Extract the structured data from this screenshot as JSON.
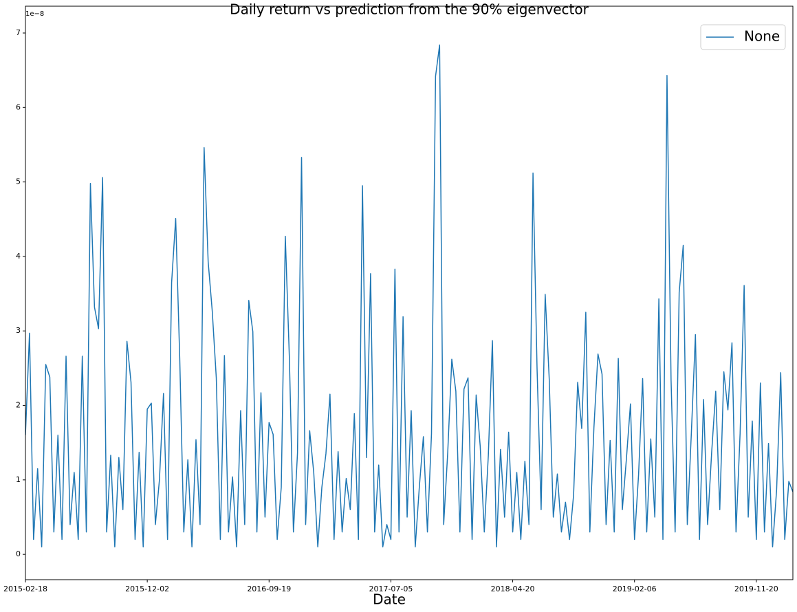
{
  "chart_data": {
    "type": "line",
    "title": "Daily return vs prediction from the 90% eigenvector",
    "x_label": "Date",
    "y_offset_label": "1e−8",
    "categories": [
      "2015-02-18",
      null,
      null,
      null,
      null,
      null,
      null,
      null,
      null,
      null,
      null,
      null,
      null,
      null,
      null,
      null,
      null,
      null,
      null,
      null,
      null,
      null,
      null,
      null,
      null,
      null,
      null,
      null,
      null,
      null,
      "2015-12-02",
      null,
      null,
      null,
      null,
      null,
      null,
      null,
      null,
      null,
      null,
      null,
      null,
      null,
      null,
      null,
      null,
      null,
      null,
      null,
      null,
      null,
      null,
      null,
      null,
      null,
      null,
      null,
      null,
      null,
      "2016-09-19",
      null,
      null,
      null,
      null,
      null,
      null,
      null,
      null,
      null,
      null,
      null,
      null,
      null,
      null,
      null,
      null,
      null,
      null,
      null,
      null,
      null,
      null,
      null,
      null,
      null,
      null,
      null,
      null,
      null,
      "2017-07-05",
      null,
      null,
      null,
      null,
      null,
      null,
      null,
      null,
      null,
      null,
      null,
      null,
      null,
      null,
      null,
      null,
      null,
      null,
      null,
      null,
      null,
      null,
      null,
      null,
      null,
      null,
      null,
      null,
      null,
      "2018-04-20",
      null,
      null,
      null,
      null,
      null,
      null,
      null,
      null,
      null,
      null,
      null,
      null,
      null,
      null,
      null,
      null,
      null,
      null,
      null,
      null,
      null,
      null,
      null,
      null,
      null,
      null,
      null,
      null,
      null,
      "2019-02-06",
      null,
      null,
      null,
      null,
      null,
      null,
      null,
      null,
      null,
      null,
      null,
      null,
      null,
      null,
      null,
      null,
      null,
      null,
      null,
      null,
      null,
      null,
      null,
      null,
      null,
      null,
      null,
      null,
      null,
      "2019-11-20",
      null,
      null,
      null,
      null,
      null,
      null,
      null,
      null,
      null
    ],
    "series": [
      {
        "name": "None",
        "color": "#1f77b4",
        "values": [
          1.6,
          2.97,
          0.2,
          1.15,
          0.1,
          2.55,
          2.38,
          0.3,
          1.6,
          0.2,
          2.66,
          0.4,
          1.1,
          0.2,
          2.66,
          0.3,
          4.98,
          3.32,
          3.03,
          5.06,
          0.3,
          1.33,
          0.1,
          1.3,
          0.6,
          2.86,
          2.31,
          0.2,
          1.37,
          0.1,
          1.95,
          2.03,
          0.4,
          1.0,
          2.16,
          0.2,
          3.65,
          4.51,
          2.63,
          0.3,
          1.27,
          0.1,
          1.54,
          0.4,
          5.46,
          3.93,
          3.27,
          2.37,
          0.2,
          2.67,
          0.3,
          1.04,
          0.1,
          1.93,
          0.4,
          3.41,
          2.99,
          0.3,
          2.17,
          0.5,
          1.77,
          1.61,
          0.2,
          0.9,
          4.27,
          2.64,
          0.3,
          1.36,
          5.33,
          0.4,
          1.66,
          1.1,
          0.1,
          0.9,
          1.35,
          2.15,
          0.2,
          1.38,
          0.3,
          1.02,
          0.6,
          1.89,
          0.2,
          4.95,
          1.3,
          3.77,
          0.3,
          1.2,
          0.1,
          0.4,
          0.2,
          3.83,
          0.3,
          3.19,
          0.5,
          1.93,
          0.1,
          0.9,
          1.58,
          0.3,
          1.62,
          6.42,
          6.84,
          0.4,
          1.37,
          2.62,
          2.19,
          0.3,
          2.22,
          2.37,
          0.2,
          2.14,
          1.45,
          0.3,
          1.33,
          2.87,
          0.1,
          1.41,
          0.5,
          1.64,
          0.3,
          1.1,
          0.2,
          1.25,
          0.4,
          5.12,
          2.49,
          0.6,
          3.49,
          2.35,
          0.5,
          1.08,
          0.3,
          0.7,
          0.2,
          0.8,
          2.31,
          1.69,
          3.25,
          0.3,
          1.7,
          2.69,
          2.42,
          0.4,
          1.53,
          0.3,
          2.63,
          0.6,
          1.28,
          2.02,
          0.2,
          1.07,
          2.36,
          0.3,
          1.55,
          0.5,
          3.43,
          0.2,
          6.43,
          2.34,
          0.3,
          3.52,
          4.15,
          0.4,
          1.63,
          2.95,
          0.2,
          2.08,
          0.4,
          1.37,
          2.19,
          0.6,
          2.45,
          1.94,
          2.84,
          0.3,
          1.62,
          3.61,
          0.5,
          1.79,
          0.2,
          2.3,
          0.3,
          1.49,
          0.1,
          0.87,
          2.44,
          0.2,
          0.98,
          0.84
        ]
      }
    ],
    "ylim": [
      -0.34,
      7.36
    ],
    "yticks": [
      0,
      1,
      2,
      3,
      4,
      5,
      6,
      7
    ],
    "legend": "upper right"
  }
}
